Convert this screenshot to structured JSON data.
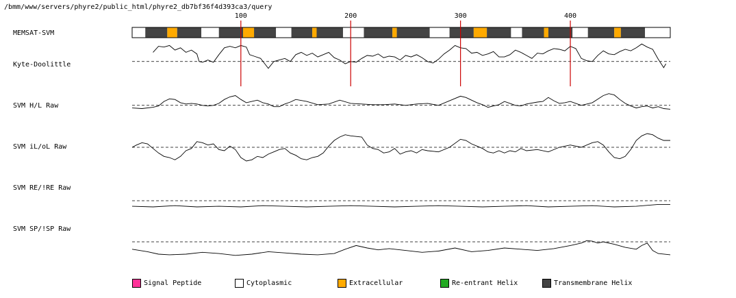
{
  "header": {
    "path": "/bmm/www/servers/phyre2/public_html/phyre2_db7bf36f4d393ca3/query"
  },
  "colors": {
    "signal_peptide": "#ff3399",
    "cytoplasmic": "#ffffff",
    "extracellular": "#ffaa00",
    "reentrant_helix": "#22aa22",
    "transmembrane_helix": "#444444",
    "marker_line": "#cc0000"
  },
  "legend": {
    "items": [
      {
        "label": "Signal Peptide",
        "color": "#ff3399"
      },
      {
        "label": "Cytoplasmic",
        "color": "#ffffff"
      },
      {
        "label": "Extracellular",
        "color": "#ffaa00"
      },
      {
        "label": "Re-entrant Helix",
        "color": "#22aa22"
      },
      {
        "label": "Transmembrane Helix",
        "color": "#444444"
      }
    ]
  },
  "chart_data": {
    "type": "line",
    "sequence_length": 491,
    "axis_ticks": [
      100,
      200,
      300,
      400
    ],
    "tick_labels": [
      "100",
      "200",
      "300",
      "400"
    ],
    "memsat": {
      "label": "MEMSAT-SVM",
      "segments": [
        {
          "start": 1,
          "end": 13,
          "kind": "cytoplasmic"
        },
        {
          "start": 13,
          "end": 33,
          "kind": "transmembrane_helix"
        },
        {
          "start": 33,
          "end": 42,
          "kind": "extracellular"
        },
        {
          "start": 42,
          "end": 64,
          "kind": "transmembrane_helix"
        },
        {
          "start": 64,
          "end": 80,
          "kind": "cytoplasmic"
        },
        {
          "start": 80,
          "end": 102,
          "kind": "transmembrane_helix"
        },
        {
          "start": 102,
          "end": 112,
          "kind": "extracellular"
        },
        {
          "start": 112,
          "end": 132,
          "kind": "transmembrane_helix"
        },
        {
          "start": 132,
          "end": 146,
          "kind": "cytoplasmic"
        },
        {
          "start": 146,
          "end": 165,
          "kind": "transmembrane_helix"
        },
        {
          "start": 165,
          "end": 169,
          "kind": "extracellular"
        },
        {
          "start": 169,
          "end": 193,
          "kind": "transmembrane_helix"
        },
        {
          "start": 193,
          "end": 212,
          "kind": "cytoplasmic"
        },
        {
          "start": 212,
          "end": 238,
          "kind": "transmembrane_helix"
        },
        {
          "start": 238,
          "end": 242,
          "kind": "extracellular"
        },
        {
          "start": 242,
          "end": 272,
          "kind": "transmembrane_helix"
        },
        {
          "start": 272,
          "end": 290,
          "kind": "cytoplasmic"
        },
        {
          "start": 290,
          "end": 312,
          "kind": "transmembrane_helix"
        },
        {
          "start": 312,
          "end": 324,
          "kind": "extracellular"
        },
        {
          "start": 324,
          "end": 346,
          "kind": "transmembrane_helix"
        },
        {
          "start": 346,
          "end": 356,
          "kind": "cytoplasmic"
        },
        {
          "start": 356,
          "end": 376,
          "kind": "transmembrane_helix"
        },
        {
          "start": 376,
          "end": 380,
          "kind": "extracellular"
        },
        {
          "start": 380,
          "end": 402,
          "kind": "transmembrane_helix"
        },
        {
          "start": 402,
          "end": 416,
          "kind": "cytoplasmic"
        },
        {
          "start": 416,
          "end": 440,
          "kind": "transmembrane_helix"
        },
        {
          "start": 440,
          "end": 446,
          "kind": "extracellular"
        },
        {
          "start": 446,
          "end": 468,
          "kind": "transmembrane_helix"
        },
        {
          "start": 468,
          "end": 491,
          "kind": "cytoplasmic"
        }
      ]
    },
    "series": [
      {
        "name": "Kyte-Doolittle",
        "baseline": 0,
        "ylim": [
          -2,
          2.5
        ],
        "x": [
          1,
          10,
          15,
          20,
          25,
          30,
          35,
          40,
          45,
          50,
          55,
          60,
          62,
          65,
          70,
          75,
          80,
          85,
          90,
          95,
          100,
          105,
          108,
          112,
          118,
          125,
          130,
          135,
          140,
          145,
          150,
          155,
          160,
          165,
          170,
          175,
          180,
          185,
          190,
          195,
          200,
          205,
          210,
          215,
          220,
          225,
          230,
          235,
          240,
          245,
          250,
          255,
          260,
          265,
          270,
          275,
          280,
          285,
          290,
          295,
          300,
          305,
          310,
          315,
          320,
          325,
          330,
          335,
          340,
          345,
          350,
          355,
          360,
          365,
          370,
          375,
          380,
          385,
          390,
          395,
          400,
          405,
          410,
          415,
          420,
          425,
          430,
          435,
          440,
          445,
          450,
          455,
          460,
          465,
          470,
          475,
          480,
          485,
          487
        ],
        "y": [
          null,
          null,
          null,
          1.2,
          2.0,
          1.9,
          2.1,
          1.5,
          1.8,
          1.2,
          1.5,
          1.0,
          0,
          -0.1,
          0.2,
          -0.1,
          0.9,
          1.8,
          2.0,
          1.8,
          2.1,
          1.9,
          0.9,
          0.7,
          0.4,
          -0.9,
          0.0,
          0.2,
          0.4,
          0.0,
          0.9,
          1.2,
          0.8,
          1.1,
          0.6,
          0.9,
          1.2,
          0.5,
          0.2,
          -0.3,
          0.0,
          -0.1,
          0.4,
          0.8,
          0.7,
          1.0,
          0.5,
          0.7,
          0.6,
          0.2,
          0.8,
          0.6,
          0.9,
          0.5,
          0.0,
          -0.2,
          0.3,
          1.0,
          1.5,
          2.1,
          1.8,
          1.7,
          1.1,
          1.2,
          0.8,
          1.0,
          1.3,
          0.6,
          0.6,
          0.9,
          1.5,
          1.2,
          0.8,
          0.4,
          1.1,
          1.0,
          1.4,
          1.7,
          1.6,
          1.4,
          2.0,
          1.7,
          0.4,
          0.1,
          0.0,
          0.8,
          1.4,
          1.0,
          0.9,
          1.3,
          1.6,
          1.4,
          1.8,
          2.3,
          1.9,
          1.6,
          0.3,
          -0.8,
          -0.3
        ]
      },
      {
        "name": "SVM H/L Raw",
        "baseline": 0,
        "ylim": [
          -1.5,
          2.5
        ],
        "x": [
          1,
          10,
          20,
          25,
          30,
          35,
          40,
          45,
          50,
          55,
          60,
          65,
          70,
          75,
          80,
          85,
          90,
          95,
          100,
          105,
          110,
          115,
          120,
          125,
          130,
          135,
          140,
          145,
          150,
          160,
          170,
          180,
          190,
          200,
          210,
          220,
          230,
          240,
          250,
          260,
          270,
          280,
          290,
          300,
          305,
          310,
          315,
          320,
          325,
          330,
          335,
          340,
          345,
          350,
          355,
          360,
          370,
          375,
          380,
          385,
          390,
          395,
          400,
          405,
          410,
          420,
          430,
          435,
          440,
          445,
          450,
          455,
          460,
          465,
          470,
          475,
          480,
          485,
          491
        ],
        "y": [
          -0.4,
          -0.5,
          -0.3,
          -0.1,
          0.6,
          1.0,
          0.9,
          0.4,
          0.2,
          0.3,
          0.2,
          0.0,
          -0.1,
          0.0,
          0.3,
          0.9,
          1.3,
          1.5,
          0.9,
          0.4,
          0.6,
          0.8,
          0.4,
          0.2,
          -0.2,
          -0.2,
          0.2,
          0.5,
          0.9,
          0.6,
          0.1,
          0.2,
          0.8,
          0.3,
          0.2,
          0.1,
          0.1,
          0.2,
          0.0,
          0.2,
          0.3,
          0.0,
          0.7,
          1.4,
          1.2,
          0.8,
          0.4,
          0.1,
          -0.3,
          -0.1,
          0.1,
          0.6,
          0.3,
          0.0,
          -0.1,
          0.2,
          0.5,
          0.6,
          1.2,
          0.7,
          0.3,
          0.4,
          0.6,
          0.3,
          0.0,
          0.4,
          1.5,
          1.8,
          1.6,
          0.9,
          0.3,
          -0.1,
          -0.4,
          -0.2,
          -0.1,
          -0.4,
          -0.2,
          -0.5,
          -0.6
        ]
      },
      {
        "name": "SVM iL/oL Raw",
        "baseline": 0,
        "ylim": [
          -1.5,
          1.5
        ],
        "x": [
          1,
          5,
          10,
          15,
          20,
          25,
          30,
          35,
          40,
          45,
          50,
          55,
          60,
          65,
          70,
          75,
          80,
          85,
          90,
          95,
          100,
          105,
          110,
          115,
          120,
          125,
          130,
          135,
          140,
          145,
          150,
          155,
          160,
          165,
          170,
          175,
          180,
          185,
          190,
          195,
          200,
          210,
          215,
          220,
          225,
          230,
          235,
          240,
          245,
          250,
          255,
          260,
          265,
          270,
          280,
          290,
          300,
          305,
          310,
          315,
          320,
          325,
          330,
          335,
          340,
          345,
          350,
          355,
          360,
          370,
          380,
          390,
          400,
          410,
          420,
          425,
          430,
          435,
          440,
          445,
          450,
          455,
          460,
          465,
          470,
          475,
          480,
          485,
          491
        ],
        "y": [
          0.0,
          0.2,
          0.4,
          0.3,
          -0.1,
          -0.5,
          -0.8,
          -0.9,
          -1.1,
          -0.8,
          -0.3,
          -0.1,
          0.5,
          0.4,
          0.2,
          0.3,
          -0.2,
          -0.3,
          0.1,
          -0.2,
          -0.9,
          -1.2,
          -1.1,
          -0.8,
          -0.9,
          -0.6,
          -0.4,
          -0.2,
          -0.1,
          -0.5,
          -0.7,
          -1.0,
          -1.1,
          -0.9,
          -0.8,
          -0.5,
          0.1,
          0.6,
          0.9,
          1.1,
          1.0,
          0.9,
          0.2,
          -0.1,
          -0.2,
          -0.5,
          -0.4,
          -0.1,
          -0.6,
          -0.4,
          -0.3,
          -0.5,
          -0.2,
          -0.3,
          -0.4,
          0.0,
          0.7,
          0.6,
          0.3,
          0.1,
          -0.1,
          -0.4,
          -0.5,
          -0.3,
          -0.5,
          -0.3,
          -0.4,
          -0.1,
          -0.3,
          -0.2,
          -0.4,
          0.0,
          0.2,
          0.0,
          0.4,
          0.5,
          0.2,
          -0.4,
          -0.9,
          -1.0,
          -0.8,
          -0.2,
          0.6,
          1.0,
          1.2,
          1.1,
          0.8,
          0.6,
          0.6
        ]
      },
      {
        "name": "SVM RE/!RE Raw",
        "baseline": 0,
        "ylim": [
          -3,
          1
        ],
        "x": [
          1,
          20,
          40,
          60,
          80,
          100,
          120,
          140,
          160,
          180,
          200,
          220,
          240,
          260,
          280,
          300,
          320,
          340,
          360,
          380,
          400,
          420,
          440,
          460,
          480,
          491
        ],
        "y": [
          -0.9,
          -1.0,
          -0.8,
          -1.0,
          -0.9,
          -1.0,
          -0.8,
          -0.9,
          -1.0,
          -0.9,
          -0.8,
          -0.9,
          -1.0,
          -0.9,
          -0.8,
          -0.9,
          -1.0,
          -0.9,
          -0.8,
          -1.0,
          -0.9,
          -0.8,
          -1.0,
          -0.9,
          -0.6,
          -0.6
        ]
      },
      {
        "name": "SVM SP/!SP Raw",
        "baseline": 0,
        "ylim": [
          -3,
          1
        ],
        "x": [
          1,
          15,
          25,
          35,
          50,
          65,
          80,
          95,
          110,
          125,
          140,
          155,
          170,
          185,
          195,
          205,
          215,
          225,
          235,
          250,
          265,
          280,
          295,
          310,
          325,
          340,
          355,
          370,
          385,
          400,
          410,
          415,
          420,
          425,
          430,
          440,
          450,
          460,
          465,
          470,
          475,
          480,
          491
        ],
        "y": [
          -1.2,
          -1.6,
          -2.0,
          -2.1,
          -2.0,
          -1.7,
          -1.9,
          -2.2,
          -2.0,
          -1.6,
          -1.8,
          -2.0,
          -2.1,
          -1.9,
          -1.2,
          -0.6,
          -1.0,
          -1.3,
          -1.1,
          -1.4,
          -1.7,
          -1.5,
          -1.0,
          -1.6,
          -1.4,
          -1.0,
          -1.2,
          -1.4,
          -1.1,
          -0.6,
          -0.2,
          0.2,
          0.1,
          -0.2,
          0.0,
          -0.4,
          -0.9,
          -1.2,
          -0.6,
          -0.2,
          -1.4,
          -1.9,
          -2.1
        ]
      }
    ]
  }
}
